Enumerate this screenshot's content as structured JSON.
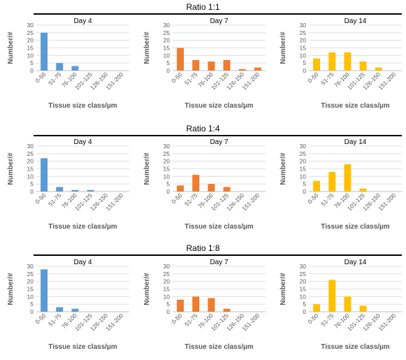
{
  "chart_data": [
    {
      "type": "bar",
      "group": "Ratio 1:1",
      "title": "Day 4",
      "categories": [
        "0-50",
        "51-75",
        "76-100",
        "101-125",
        "126-150",
        "151-200"
      ],
      "values": [
        25,
        5,
        3,
        0,
        0,
        0
      ],
      "ylim": [
        0,
        30
      ],
      "yticks": [
        0,
        5,
        10,
        15,
        20,
        25,
        30
      ],
      "ylabel": "Number/#",
      "xlabel": "Tissue size class/µm",
      "color": "#5B9BD5",
      "grid": true
    },
    {
      "type": "bar",
      "group": "Ratio 1:1",
      "title": "Day 7",
      "categories": [
        "0-50",
        "51-75",
        "76-100",
        "101-125",
        "126-150",
        "151-200"
      ],
      "values": [
        15,
        7,
        6,
        7,
        1,
        2
      ],
      "ylim": [
        0,
        30
      ],
      "yticks": [
        0,
        5,
        10,
        15,
        20,
        25,
        30
      ],
      "ylabel": "Number/#",
      "xlabel": "Tissue size class/µm",
      "color": "#ED7D31",
      "grid": true
    },
    {
      "type": "bar",
      "group": "Ratio 1:1",
      "title": "Day 14",
      "categories": [
        "0-50",
        "51-75",
        "76-100",
        "101-125",
        "126-150",
        "151-200"
      ],
      "values": [
        8,
        12,
        12,
        6,
        2,
        0
      ],
      "ylim": [
        0,
        30
      ],
      "yticks": [
        0,
        5,
        10,
        15,
        20,
        25,
        30
      ],
      "ylabel": "Number/#",
      "xlabel": "Tissue size class/µm",
      "color": "#FFC000",
      "grid": true
    },
    {
      "type": "bar",
      "group": "Ratio 1:4",
      "title": "Day 4",
      "categories": [
        "0-50",
        "51-75",
        "76-100",
        "101-125",
        "126-150",
        "151-200"
      ],
      "values": [
        22,
        3,
        1,
        1,
        0,
        0
      ],
      "ylim": [
        0,
        30
      ],
      "yticks": [
        0,
        5,
        10,
        15,
        20,
        25,
        30
      ],
      "ylabel": "Number/#",
      "xlabel": "Tissue size class/µm",
      "color": "#5B9BD5",
      "grid": true
    },
    {
      "type": "bar",
      "group": "Ratio 1:4",
      "title": "Day 7",
      "categories": [
        "0-50",
        "51-75",
        "76-100",
        "101-125",
        "126-150",
        "151-200"
      ],
      "values": [
        4,
        11,
        5,
        3,
        0,
        0
      ],
      "ylim": [
        0,
        30
      ],
      "yticks": [
        0,
        5,
        10,
        15,
        20,
        25,
        30
      ],
      "ylabel": "Number/#",
      "xlabel": "Tissue size class/µm",
      "color": "#ED7D31",
      "grid": true
    },
    {
      "type": "bar",
      "group": "Ratio 1:4",
      "title": "Day 14",
      "categories": [
        "0-50",
        "51-75",
        "76-100",
        "101-125",
        "126-150",
        "151-200"
      ],
      "values": [
        7,
        13,
        18,
        2,
        0,
        0
      ],
      "ylim": [
        0,
        30
      ],
      "yticks": [
        0,
        5,
        10,
        15,
        20,
        25,
        30
      ],
      "ylabel": "Number/#",
      "xlabel": "Tissue size class/µm",
      "color": "#FFC000",
      "grid": true
    },
    {
      "type": "bar",
      "group": "Ratio 1:8",
      "title": "Day 4",
      "categories": [
        "0-50",
        "51-75",
        "76-100",
        "101-125",
        "126-150",
        "151-200"
      ],
      "values": [
        28,
        3,
        2,
        0,
        0,
        0
      ],
      "ylim": [
        0,
        30
      ],
      "yticks": [
        0,
        5,
        10,
        15,
        20,
        25,
        30
      ],
      "ylabel": "Number/#",
      "xlabel": "Tissue size class/µm",
      "color": "#5B9BD5",
      "grid": true
    },
    {
      "type": "bar",
      "group": "Ratio 1:8",
      "title": "Day 7",
      "categories": [
        "0-50",
        "51-75",
        "76-100",
        "101-125",
        "126-150",
        "151-200"
      ],
      "values": [
        8,
        10,
        9,
        2,
        0,
        0
      ],
      "ylim": [
        0,
        30
      ],
      "yticks": [
        0,
        5,
        10,
        15,
        20,
        25,
        30
      ],
      "ylabel": "Number/#",
      "xlabel": "Tissue size class/µm",
      "color": "#ED7D31",
      "grid": true
    },
    {
      "type": "bar",
      "group": "Ratio 1:8",
      "title": "Day 14",
      "categories": [
        "0-50",
        "51-75",
        "76-100",
        "101-125",
        "126-150",
        "151-200"
      ],
      "values": [
        5,
        21,
        10,
        4,
        0,
        0
      ],
      "ylim": [
        0,
        30
      ],
      "yticks": [
        0,
        5,
        10,
        15,
        20,
        25,
        30
      ],
      "ylabel": "Number/#",
      "xlabel": "Tissue size class/µm",
      "color": "#FFC000",
      "grid": true
    }
  ],
  "sections": [
    {
      "title": "Ratio 1:1"
    },
    {
      "title": "Ratio 1:4"
    },
    {
      "title": "Ratio 1:8"
    }
  ]
}
